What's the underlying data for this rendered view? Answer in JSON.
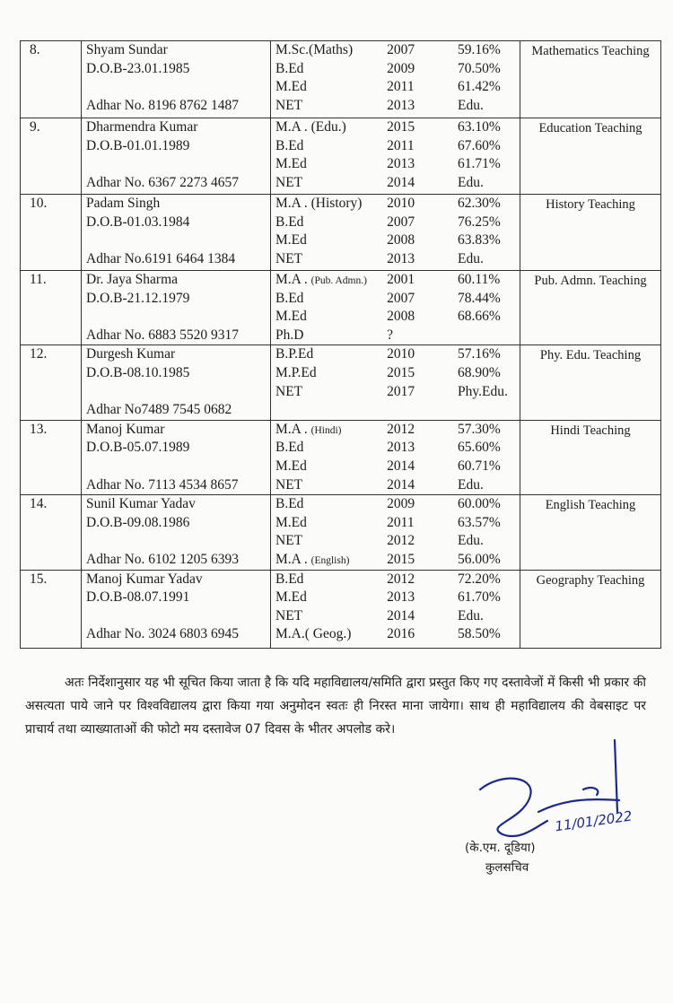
{
  "rows": [
    {
      "no": "8.",
      "name": "Shyam Sundar",
      "dob": "D.O.B-23.01.1985",
      "adhar": "Adhar No. 8196 8762 1487",
      "quals": [
        {
          "d": "M.Sc.(Maths)",
          "y": "2007",
          "p": "59.16%"
        },
        {
          "d": "B.Ed",
          "y": "2009",
          "p": "70.50%"
        },
        {
          "d": "M.Ed",
          "y": "2011",
          "p": "61.42%"
        },
        {
          "d": "NET",
          "y": "2013",
          "p": "Edu."
        }
      ],
      "subject": "Mathematics Teaching"
    },
    {
      "no": "9.",
      "name": "Dharmendra Kumar",
      "dob": "D.O.B-01.01.1989",
      "adhar": "Adhar No. 6367 2273 4657",
      "quals": [
        {
          "d": "M.A . (Edu.)",
          "y": "2015",
          "p": "63.10%"
        },
        {
          "d": "B.Ed",
          "y": "2011",
          "p": "67.60%"
        },
        {
          "d": "M.Ed",
          "y": "2013",
          "p": "61.71%"
        },
        {
          "d": "NET",
          "y": "2014",
          "p": "Edu."
        }
      ],
      "subject": "Education Teaching"
    },
    {
      "no": "10.",
      "name": "Padam Singh",
      "dob": "D.O.B-01.03.1984",
      "adhar": "Adhar No.6191 6464 1384",
      "quals": [
        {
          "d": "M.A . (History)",
          "y": "2010",
          "p": "62.30%"
        },
        {
          "d": "B.Ed",
          "y": "2007",
          "p": "76.25%"
        },
        {
          "d": "M.Ed",
          "y": "2008",
          "p": "63.83%"
        },
        {
          "d": "NET",
          "y": "2013",
          "p": "Edu."
        }
      ],
      "subject": "History Teaching"
    },
    {
      "no": "11.",
      "name": "Dr. Jaya Sharma",
      "dob": "D.O.B-21.12.1979",
      "adhar": "Adhar No. 6883 5520 9317",
      "quals": [
        {
          "d": "M.A . ",
          "ds": "(Pub. Admn.)",
          "y": "2001",
          "p": "60.11%"
        },
        {
          "d": "B.Ed",
          "y": "2007",
          "p": "78.44%"
        },
        {
          "d": "M.Ed",
          "y": "2008",
          "p": "68.66%"
        },
        {
          "d": "Ph.D",
          "y": "?",
          "p": ""
        }
      ],
      "subject": "Pub. Admn. Teaching"
    },
    {
      "no": "12.",
      "name": "Durgesh Kumar",
      "dob": "D.O.B-08.10.1985",
      "adhar": "Adhar No7489 7545 0682",
      "quals": [
        {
          "d": "B.P.Ed",
          "y": "2010",
          "p": "57.16%"
        },
        {
          "d": "M.P.Ed",
          "y": "2015",
          "p": "68.90%"
        },
        {
          "d": "NET",
          "y": "2017",
          "p": "Phy.Edu."
        },
        {
          "d": "",
          "y": "",
          "p": ""
        }
      ],
      "subject": "Phy. Edu.  Teaching"
    },
    {
      "no": "13.",
      "name": "Manoj Kumar",
      "dob": "D.O.B-05.07.1989",
      "adhar": "Adhar No. 7113 4534 8657",
      "quals": [
        {
          "d": "M.A . ",
          "ds": "(Hindi)",
          "y": "2012",
          "p": "57.30%"
        },
        {
          "d": "B.Ed",
          "y": "2013",
          "p": "65.60%"
        },
        {
          "d": "M.Ed",
          "y": "2014",
          "p": "60.71%"
        },
        {
          "d": "NET",
          "y": "2014",
          "p": "Edu."
        }
      ],
      "subject": "Hindi  Teaching"
    },
    {
      "no": "14.",
      "name": "Sunil Kumar Yadav",
      "dob": "D.O.B-09.08.1986",
      "adhar": "Adhar No. 6102 1205 6393",
      "quals": [
        {
          "d": "B.Ed",
          "y": "2009",
          "p": "60.00%"
        },
        {
          "d": "M.Ed",
          "y": "2011",
          "p": "63.57%"
        },
        {
          "d": "NET",
          "y": "2012",
          "p": "Edu."
        },
        {
          "d": "M.A . ",
          "ds": "(English)",
          "y": "2015",
          "p": "56.00%"
        }
      ],
      "subject": "English  Teaching"
    },
    {
      "no": "15.",
      "name": "Manoj Kumar Yadav",
      "dob": "D.O.B-08.07.1991",
      "adhar": "Adhar No. 3024 6803 6945",
      "quals": [
        {
          "d": "B.Ed",
          "y": "2012",
          "p": "72.20%"
        },
        {
          "d": "M.Ed",
          "y": "2013",
          "p": "61.70%"
        },
        {
          "d": "NET",
          "y": "2014",
          "p": "Edu."
        },
        {
          "d": "M.A.( Geog.)",
          "y": "2016",
          "p": "58.50%"
        }
      ],
      "subject": "Geography Teaching"
    }
  ],
  "paragraph": "अतः निर्देशानुसार यह भी सूचित किया जाता है कि यदि महाविद्यालय/समिति द्वारा प्रस्तुत किए गए दस्तावेजों में किसी भी प्रकार की असत्यता पाये जाने पर विश्वविद्यालय द्वारा किया गया अनुमोदन स्वतः ही निरस्त माना जायेगा। साथ ही महाविद्यालय की वेबसाइट पर प्राचार्य तथा व्याख्याताओं की फोटो मय दस्तावेज 07 दिवस के भीतर अपलोड करे।",
  "signature": {
    "date": "11/01/2022",
    "name": "(के.एम. दूडिया)",
    "title": "कुलसचिव"
  }
}
